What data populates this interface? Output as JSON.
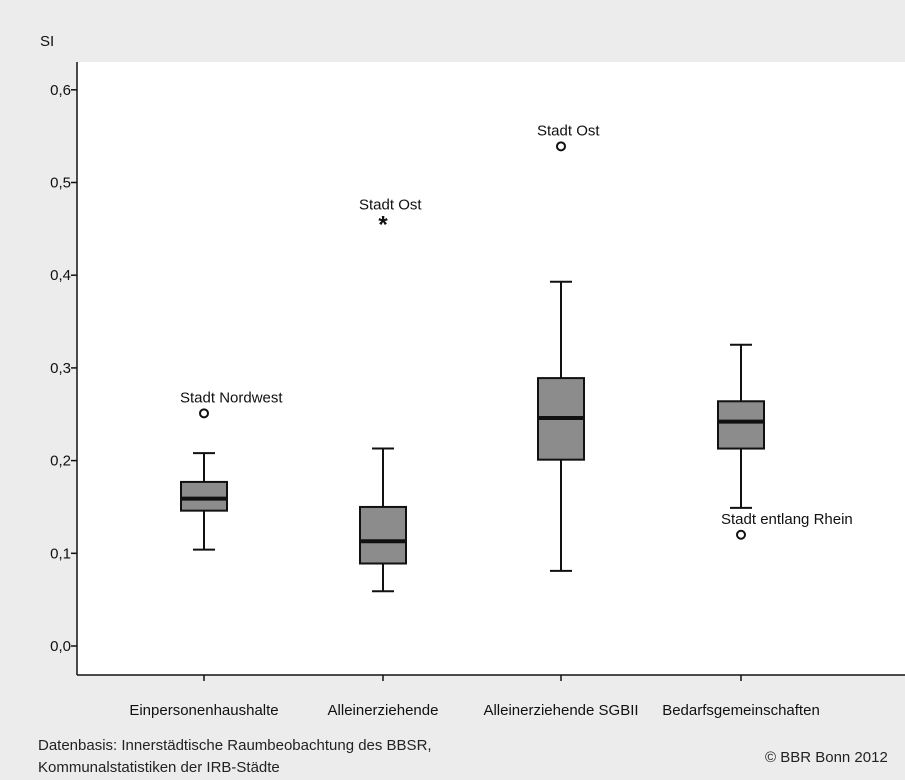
{
  "chart_data": {
    "type": "box",
    "ylabel": "SI",
    "ylim": [
      0,
      0.63
    ],
    "yticks": [
      "0,0",
      "0,1",
      "0,2",
      "0,3",
      "0,4",
      "0,5",
      "0,6"
    ],
    "ytick_values": [
      0,
      0.1,
      0.2,
      0.3,
      0.4,
      0.5,
      0.6
    ],
    "grid": false,
    "categories": [
      "Einpersonenhaushalte",
      "Alleinerziehende",
      "Alleinerziehende SGBII",
      "Bedarfsgemeinschaften"
    ],
    "boxes": [
      {
        "whisker_low": 0.104,
        "q1": 0.146,
        "median": 0.159,
        "q3": 0.177,
        "whisker_high": 0.208
      },
      {
        "whisker_low": 0.059,
        "q1": 0.089,
        "median": 0.113,
        "q3": 0.15,
        "whisker_high": 0.213
      },
      {
        "whisker_low": 0.081,
        "q1": 0.201,
        "median": 0.246,
        "q3": 0.289,
        "whisker_high": 0.393
      },
      {
        "whisker_low": 0.149,
        "q1": 0.213,
        "median": 0.242,
        "q3": 0.264,
        "whisker_high": 0.325
      }
    ],
    "outliers": [
      {
        "category": 0,
        "value": 0.251,
        "marker": "circle",
        "label": "Stadt Nordwest"
      },
      {
        "category": 1,
        "value": 0.459,
        "marker": "star",
        "label": "Stadt Ost"
      },
      {
        "category": 2,
        "value": 0.539,
        "marker": "circle",
        "label": "Stadt Ost"
      },
      {
        "category": 3,
        "value": 0.12,
        "marker": "circle",
        "label": "Stadt entlang Rhein"
      }
    ],
    "colors": {
      "box_fill": "#8c8c8c",
      "plot_bg": "#ffffff",
      "page_bg": "#ececec",
      "line": "#111111"
    }
  },
  "footer": {
    "source_line1": "Datenbasis: Innerstädtische Raumbeobachtung des BBSR,",
    "source_line2": "Kommunalstatistiken der IRB-Städte",
    "copyright": "© BBR Bonn 2012"
  }
}
